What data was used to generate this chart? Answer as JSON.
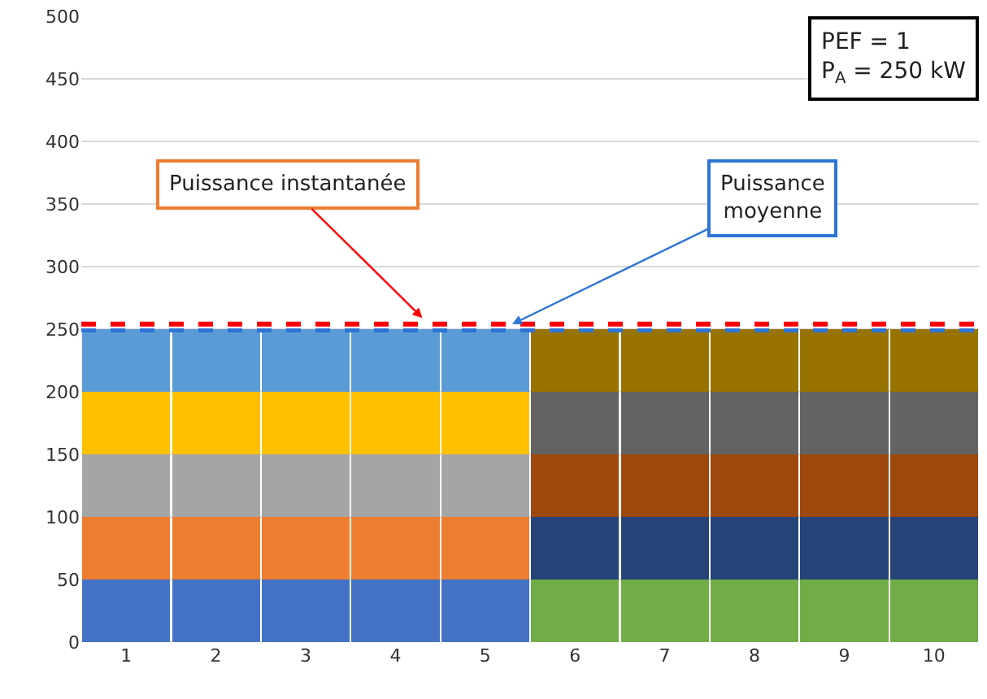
{
  "chart_data": {
    "type": "bar",
    "stacked": true,
    "categories": [
      "1",
      "2",
      "3",
      "4",
      "5",
      "6",
      "7",
      "8",
      "9",
      "10"
    ],
    "series": [
      {
        "values": [
          50,
          50,
          50,
          50,
          50,
          50,
          50,
          50,
          50,
          50
        ],
        "colors": [
          "#4472c4",
          "#4472c4",
          "#4472c4",
          "#4472c4",
          "#4472c4",
          "#70ad47",
          "#70ad47",
          "#70ad47",
          "#70ad47",
          "#70ad47"
        ]
      },
      {
        "values": [
          50,
          50,
          50,
          50,
          50,
          50,
          50,
          50,
          50,
          50
        ],
        "colors": [
          "#ed7d31",
          "#ed7d31",
          "#ed7d31",
          "#ed7d31",
          "#ed7d31",
          "#264478",
          "#264478",
          "#264478",
          "#264478",
          "#264478"
        ]
      },
      {
        "values": [
          50,
          50,
          50,
          50,
          50,
          50,
          50,
          50,
          50,
          50
        ],
        "colors": [
          "#a5a5a5",
          "#a5a5a5",
          "#a5a5a5",
          "#a5a5a5",
          "#a5a5a5",
          "#9e480e",
          "#9e480e",
          "#9e480e",
          "#9e480e",
          "#9e480e"
        ]
      },
      {
        "values": [
          50,
          50,
          50,
          50,
          50,
          50,
          50,
          50,
          50,
          50
        ],
        "colors": [
          "#ffc000",
          "#ffc000",
          "#ffc000",
          "#ffc000",
          "#ffc000",
          "#636363",
          "#636363",
          "#636363",
          "#636363",
          "#636363"
        ]
      },
      {
        "values": [
          50,
          50,
          50,
          50,
          50,
          50,
          50,
          50,
          50,
          50
        ],
        "colors": [
          "#5b9bd5",
          "#5b9bd5",
          "#5b9bd5",
          "#5b9bd5",
          "#5b9bd5",
          "#997300",
          "#997300",
          "#997300",
          "#997300",
          "#997300"
        ]
      }
    ],
    "ylim": [
      0,
      500
    ],
    "yticks": [
      0,
      50,
      100,
      150,
      200,
      250,
      300,
      350,
      400,
      450,
      500
    ],
    "grid": "y",
    "ref_lines": [
      {
        "axis": "y",
        "value": 249,
        "label": "Puissance moyenne",
        "color": "#2e75d6",
        "line_style": "dashed"
      },
      {
        "axis": "y",
        "value": 254,
        "label": "Puissance instantanée",
        "color": "#ff0000",
        "line_style": "dashed"
      }
    ],
    "annotations": [
      "PEF = 1\nP$_{A}$ = 250 kW"
    ]
  }
}
